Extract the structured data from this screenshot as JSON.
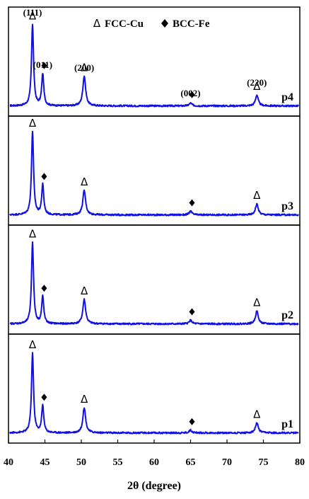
{
  "chart_data": {
    "type": "line",
    "title": "",
    "xlabel": "2θ (degree)",
    "ylabel": "",
    "xlim": [
      40,
      80
    ],
    "xticks": [
      40,
      45,
      50,
      55,
      60,
      65,
      70,
      75,
      80
    ],
    "legend": {
      "fcc_marker": "Δ",
      "fcc_label": "FCC-Cu",
      "bcc_marker": "♦",
      "bcc_label": "BCC-Fe"
    },
    "color": "#1010e0",
    "peak_labels": [
      {
        "label": "(111)",
        "x": 43.3
      },
      {
        "label": "(011)",
        "x": 44.7
      },
      {
        "label": "(200)",
        "x": 50.4
      },
      {
        "label": "(002)",
        "x": 65.0
      },
      {
        "label": "(220)",
        "x": 74.1
      }
    ],
    "series": [
      {
        "name": "p4",
        "baseline": 0.05,
        "peaks": [
          {
            "x": 43.3,
            "height": 0.9,
            "phase": "fcc"
          },
          {
            "x": 44.7,
            "height": 0.35,
            "phase": "bcc"
          },
          {
            "x": 50.4,
            "height": 0.33,
            "phase": "fcc"
          },
          {
            "x": 65.0,
            "height": 0.03,
            "phase": "bcc"
          },
          {
            "x": 74.1,
            "height": 0.12,
            "phase": "fcc"
          }
        ]
      },
      {
        "name": "p3",
        "baseline": 0.05,
        "peaks": [
          {
            "x": 43.3,
            "height": 0.92,
            "phase": "fcc"
          },
          {
            "x": 44.7,
            "height": 0.33,
            "phase": "bcc"
          },
          {
            "x": 50.4,
            "height": 0.27,
            "phase": "fcc"
          },
          {
            "x": 65.0,
            "height": 0.04,
            "phase": "bcc"
          },
          {
            "x": 74.1,
            "height": 0.12,
            "phase": "fcc"
          }
        ]
      },
      {
        "name": "p2",
        "baseline": 0.05,
        "peaks": [
          {
            "x": 43.3,
            "height": 0.9,
            "phase": "fcc"
          },
          {
            "x": 44.7,
            "height": 0.3,
            "phase": "bcc"
          },
          {
            "x": 50.4,
            "height": 0.27,
            "phase": "fcc"
          },
          {
            "x": 65.0,
            "height": 0.04,
            "phase": "bcc"
          },
          {
            "x": 74.1,
            "height": 0.14,
            "phase": "fcc"
          }
        ]
      },
      {
        "name": "p1",
        "baseline": 0.05,
        "peaks": [
          {
            "x": 43.3,
            "height": 0.88,
            "phase": "fcc"
          },
          {
            "x": 44.7,
            "height": 0.3,
            "phase": "bcc"
          },
          {
            "x": 50.4,
            "height": 0.28,
            "phase": "fcc"
          },
          {
            "x": 65.0,
            "height": 0.03,
            "phase": "bcc"
          },
          {
            "x": 74.1,
            "height": 0.11,
            "phase": "fcc"
          }
        ]
      }
    ]
  }
}
